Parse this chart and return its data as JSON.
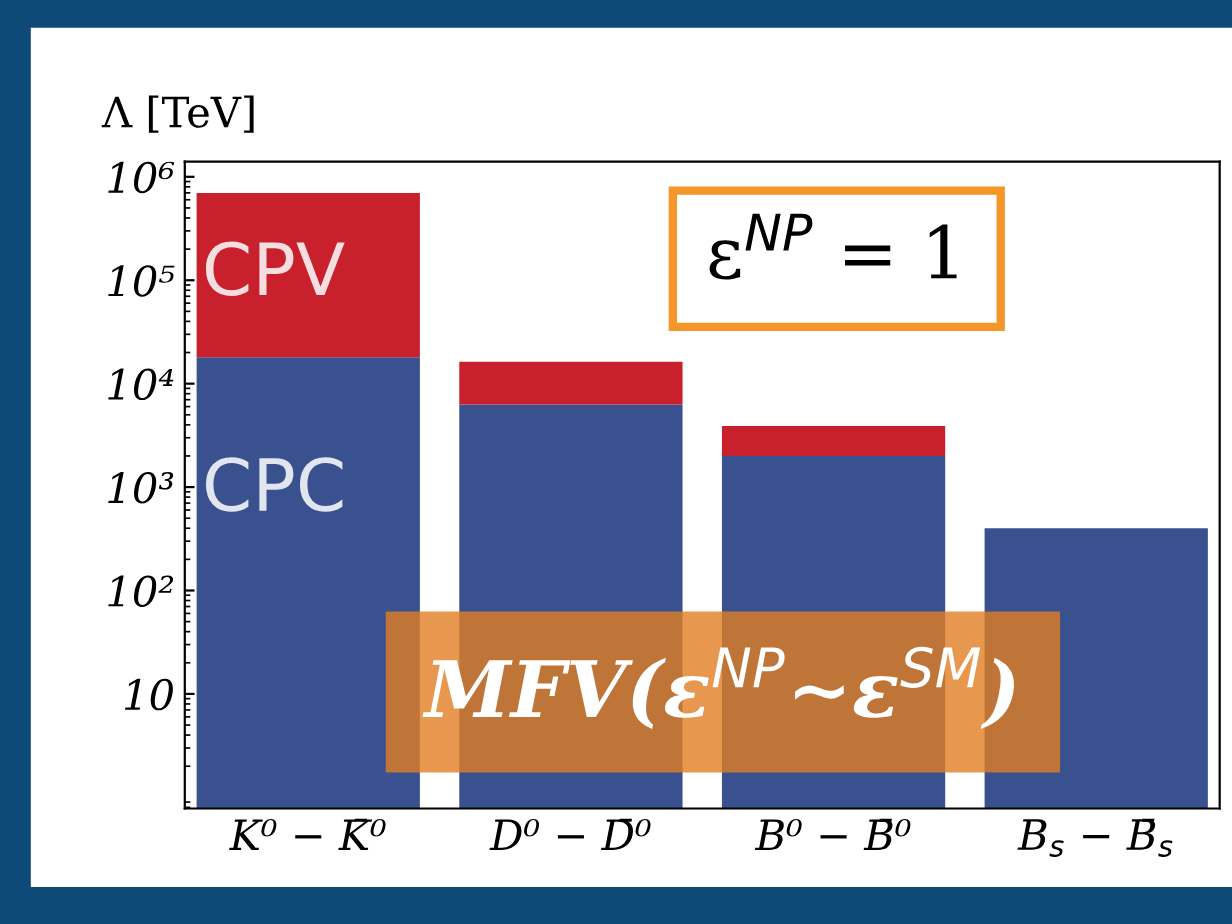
{
  "chart_data": {
    "type": "bar",
    "stacked": true,
    "log": "y",
    "ylabel": "Λ [TeV]",
    "categories": [
      "K⁰ − K̄⁰",
      "D⁰ − D̄⁰",
      "B⁰ − B̄⁰",
      "B$_{s}$ − B̄$_{s}$"
    ],
    "series": [
      {
        "name": "CPC",
        "color": "#3a5190",
        "values": [
          18000,
          6300,
          2000,
          400
        ]
      },
      {
        "name": "CPV",
        "color": "#c8202c",
        "values": [
          680000,
          10000,
          1900,
          null
        ]
      }
    ],
    "ylim": [
      0.78,
      1400000
    ],
    "yticks": [
      10,
      {
        "value": 100,
        "label": "10²"
      },
      {
        "value": 1000,
        "label": "10³"
      },
      {
        "value": 10000,
        "label": "10⁴"
      },
      {
        "value": 100000,
        "label": "10⁵"
      },
      {
        "value": 1000000,
        "label": "10⁶"
      }
    ],
    "grid": false,
    "legend": false,
    "annotations": [
      "ε$^{NP}$ = 1",
      "MFV(ε$^{NP}$∼ε$^{SM}$)"
    ]
  }
}
